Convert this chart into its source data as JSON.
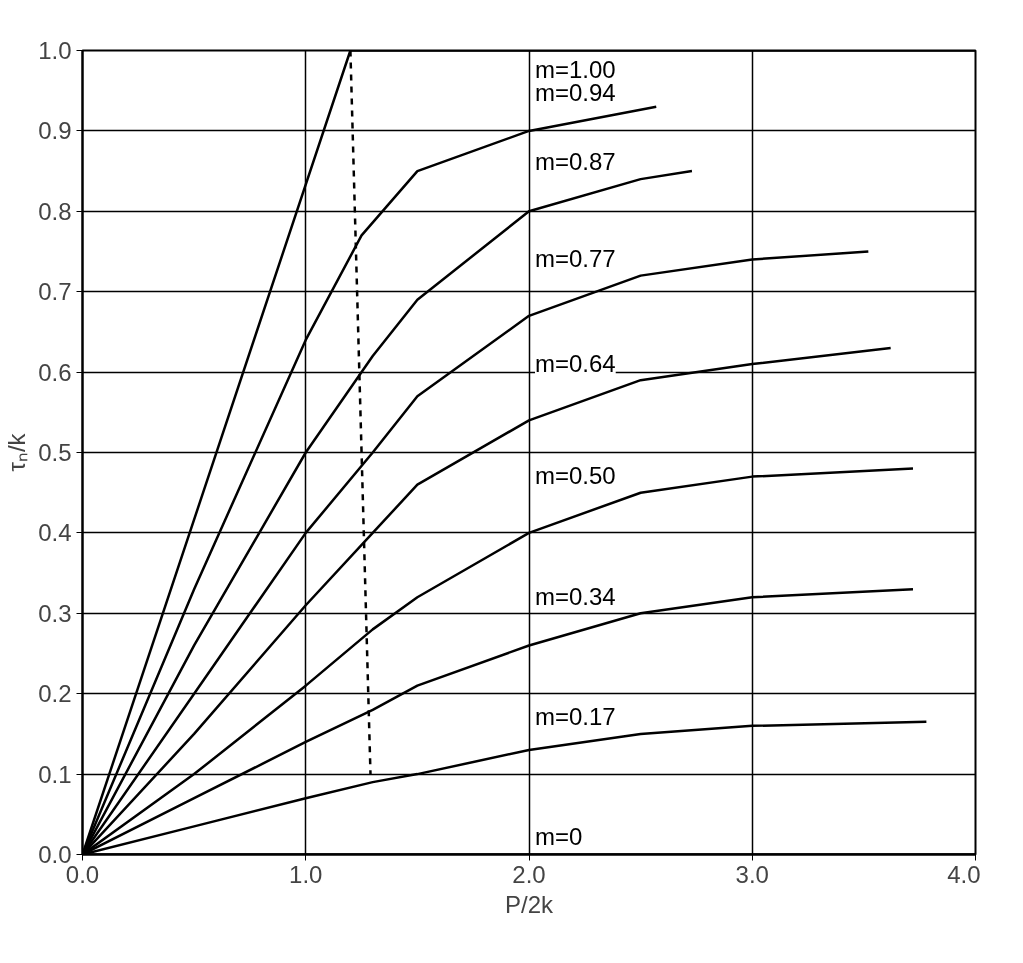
{
  "chart_data": {
    "type": "line",
    "xlabel": "P/2k",
    "ylabel": "τₙ/k",
    "xlim": [
      0,
      4.0
    ],
    "ylim": [
      0,
      1.0
    ],
    "xticks": [
      {
        "value": 0,
        "label": "0.0"
      },
      {
        "value": 1,
        "label": "1.0"
      },
      {
        "value": 2,
        "label": "2.0"
      },
      {
        "value": 3,
        "label": "3.0"
      },
      {
        "value": 4,
        "label": "4.0"
      }
    ],
    "yticks": [
      {
        "value": 0,
        "label": "0.0"
      },
      0.1,
      0.2,
      0.3,
      0.4,
      0.5,
      0.6,
      0.7,
      0.8,
      0.9,
      {
        "value": 1,
        "label": "1.0"
      }
    ],
    "grid": true,
    "marker": "none",
    "line_style": "solid",
    "series": [
      {
        "name": "m=1.00",
        "color": "#000000",
        "x": [
          0,
          1.2,
          4.0
        ],
        "values": [
          0,
          1.0,
          1.0
        ]
      },
      {
        "name": "m=0.94",
        "color": "#000000",
        "x": [
          0,
          0.5,
          1.0,
          1.25,
          1.5,
          2.0,
          2.57
        ],
        "values": [
          0,
          0.33,
          0.64,
          0.77,
          0.85,
          0.9,
          0.93
        ]
      },
      {
        "name": "m=0.87",
        "color": "#000000",
        "x": [
          0,
          0.5,
          1.0,
          1.3,
          1.5,
          2.0,
          2.5,
          2.73
        ],
        "values": [
          0,
          0.26,
          0.5,
          0.62,
          0.69,
          0.8,
          0.84,
          0.85
        ]
      },
      {
        "name": "m=0.77",
        "color": "#000000",
        "x": [
          0,
          0.5,
          1.0,
          1.3,
          1.5,
          2.0,
          2.5,
          3.0,
          3.52
        ],
        "values": [
          0,
          0.2,
          0.4,
          0.5,
          0.57,
          0.67,
          0.72,
          0.74,
          0.75
        ]
      },
      {
        "name": "m=0.64",
        "color": "#000000",
        "x": [
          0,
          0.5,
          1.0,
          1.3,
          1.5,
          2.0,
          2.5,
          3.0,
          3.62
        ],
        "values": [
          0,
          0.15,
          0.31,
          0.4,
          0.46,
          0.54,
          0.59,
          0.61,
          0.63
        ]
      },
      {
        "name": "m=0.50",
        "color": "#000000",
        "x": [
          0,
          0.5,
          1.0,
          1.3,
          1.5,
          2.0,
          2.5,
          3.0,
          3.72
        ],
        "values": [
          0,
          0.1,
          0.21,
          0.28,
          0.32,
          0.4,
          0.45,
          0.47,
          0.48
        ]
      },
      {
        "name": "m=0.34",
        "color": "#000000",
        "x": [
          0,
          0.5,
          1.0,
          1.3,
          1.5,
          2.0,
          2.5,
          3.0,
          3.72
        ],
        "values": [
          0,
          0.07,
          0.14,
          0.18,
          0.21,
          0.26,
          0.3,
          0.32,
          0.33
        ]
      },
      {
        "name": "m=0.17",
        "color": "#000000",
        "x": [
          0,
          0.5,
          1.0,
          1.3,
          1.5,
          2.0,
          2.5,
          3.0,
          3.78
        ],
        "values": [
          0,
          0.035,
          0.07,
          0.09,
          0.1,
          0.13,
          0.15,
          0.16,
          0.165
        ]
      },
      {
        "name": "m=0",
        "color": "#000000",
        "x": [
          0,
          4.0
        ],
        "values": [
          0,
          0
        ]
      },
      {
        "color": "#000000",
        "line_style": "dashed",
        "x": [
          1.2,
          1.29
        ],
        "values": [
          1.0,
          0.1
        ]
      }
    ]
  }
}
